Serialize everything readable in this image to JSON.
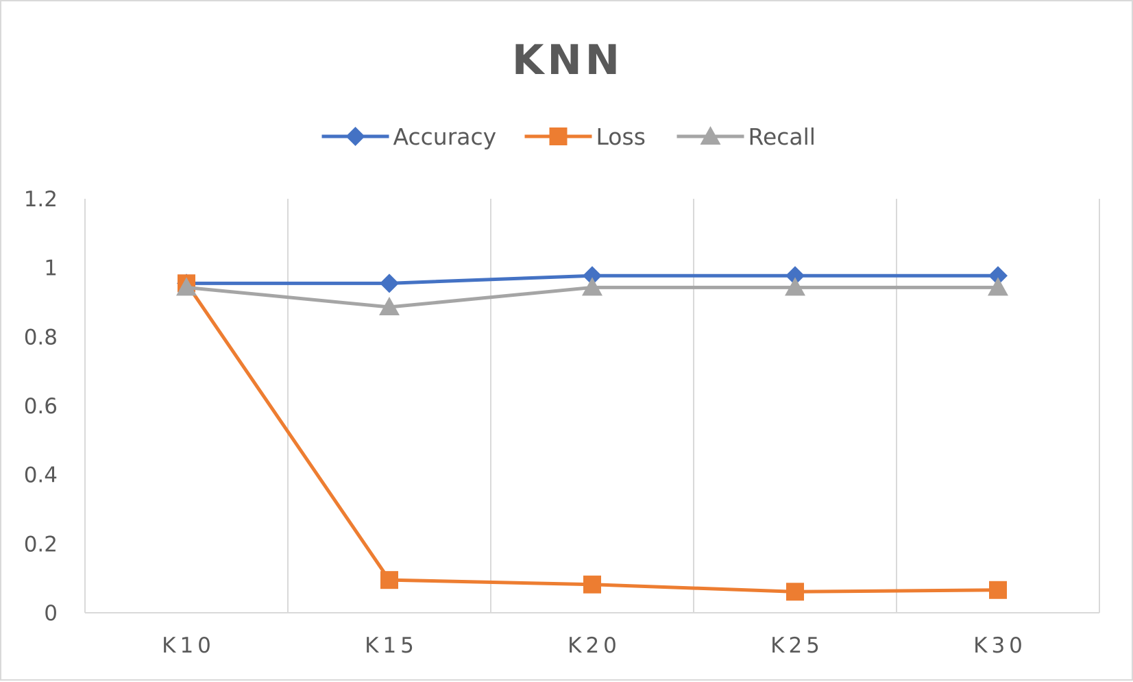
{
  "chart_data": {
    "type": "line",
    "title": "KNN",
    "xlabel": "",
    "ylabel": "",
    "categories": [
      "K10",
      "K15",
      "K20",
      "K25",
      "K30"
    ],
    "ylim": [
      0,
      1.2
    ],
    "yticks": [
      0,
      0.2,
      0.4,
      0.6,
      0.8,
      1,
      1.2
    ],
    "ytick_labels": [
      "0",
      "0.2",
      "0.4",
      "0.6",
      "0.8",
      "1",
      "1.2"
    ],
    "grid": "vertical",
    "legend_position": "top",
    "series": [
      {
        "name": "Accuracy",
        "marker": "diamond",
        "color": "#4472c4",
        "values": [
          0.955,
          0.955,
          0.977,
          0.977,
          0.977
        ]
      },
      {
        "name": "Loss",
        "marker": "square",
        "color": "#ed7d31",
        "values": [
          0.955,
          0.095,
          0.082,
          0.061,
          0.066
        ]
      },
      {
        "name": "Recall",
        "marker": "triangle",
        "color": "#a5a5a5",
        "values": [
          0.943,
          0.886,
          0.943,
          0.943,
          0.943
        ]
      }
    ]
  }
}
